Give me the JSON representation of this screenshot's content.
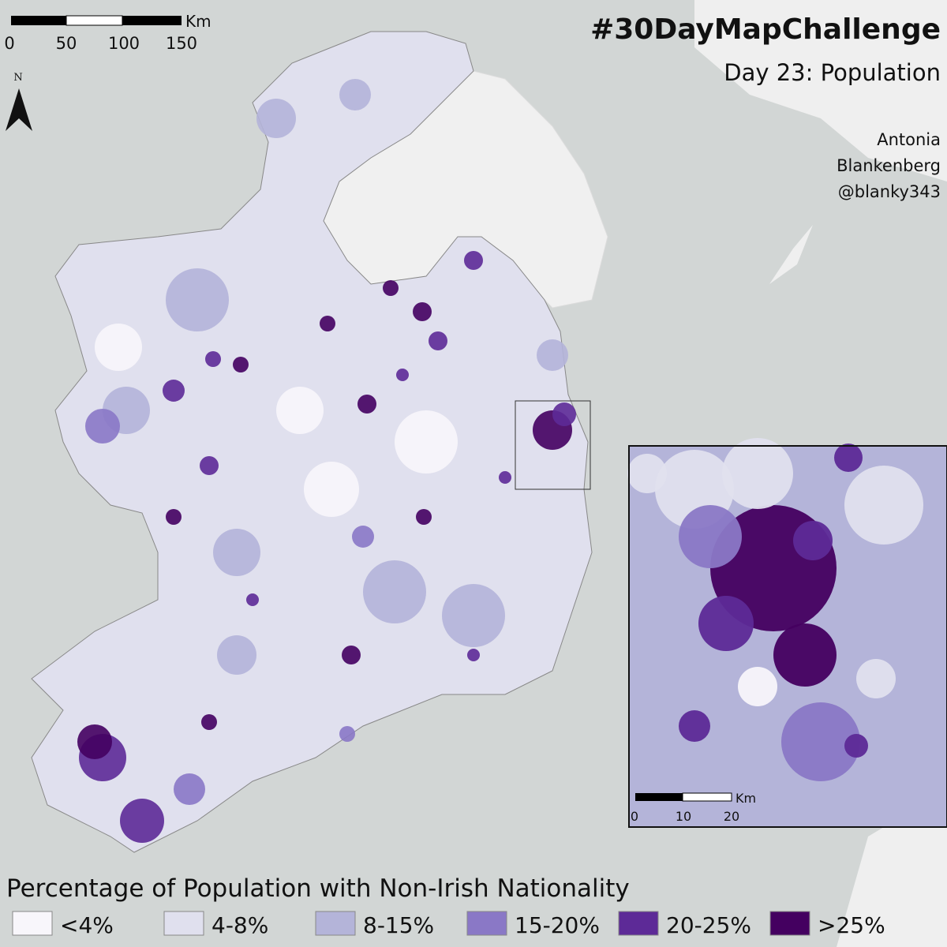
{
  "title": "#30DayMapChallenge",
  "subtitle": "Day 23: Population",
  "credit": [
    "Antonia",
    "Blankenberg",
    "@blanky343"
  ],
  "scale_bar": {
    "unit": "Km",
    "labels": [
      "0",
      "50",
      "100",
      "150"
    ]
  },
  "north_arrow": "N",
  "inset": {
    "scale_bar": {
      "unit": "Km",
      "labels": [
        "0",
        "10",
        "20"
      ]
    }
  },
  "legend": {
    "title": "Percentage of Population with Non-Irish Nationality",
    "items": [
      {
        "label": "<4%",
        "color": "#f8f6fb"
      },
      {
        "label": "4-8%",
        "color": "#e0e0ee"
      },
      {
        "label": "8-15%",
        "color": "#b4b4d9"
      },
      {
        "label": "15-20%",
        "color": "#8a78c6"
      },
      {
        "label": "20-25%",
        "color": "#5d2a97"
      },
      {
        "label": ">25%",
        "color": "#440060"
      }
    ]
  }
}
